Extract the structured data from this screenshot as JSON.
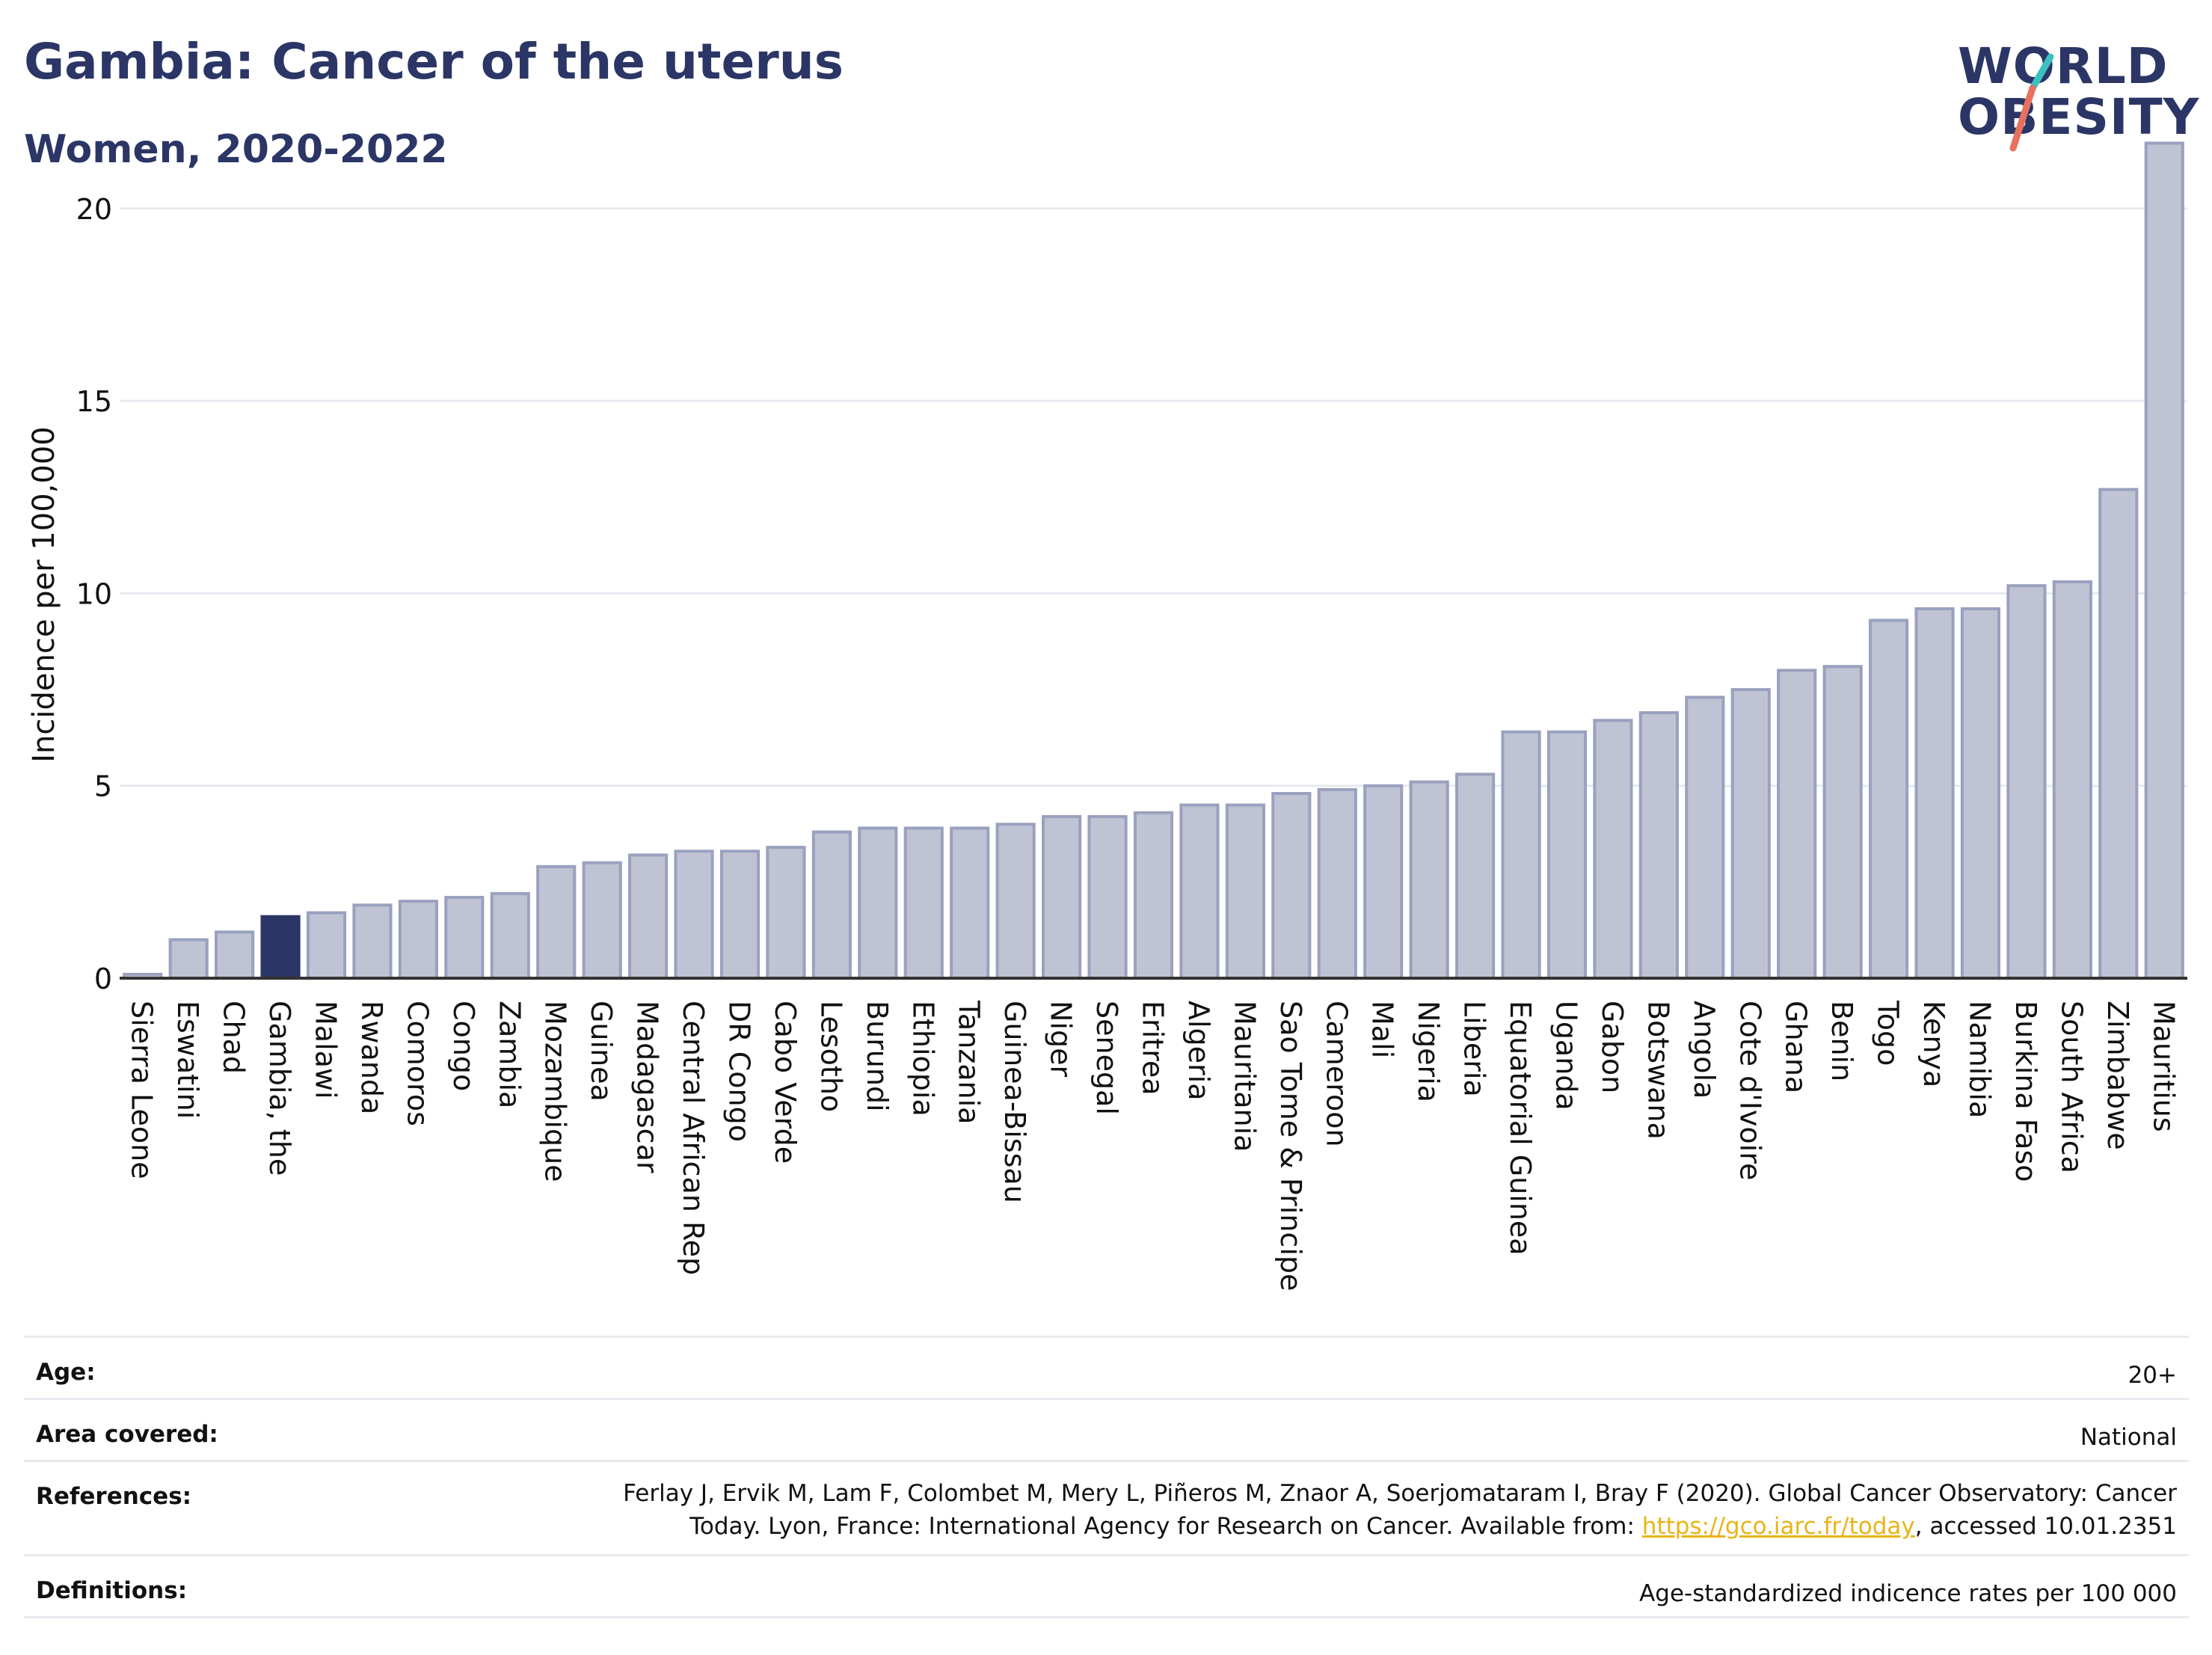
{
  "header": {
    "title": "Gambia: Cancer of the uterus",
    "subtitle": "Women, 2020-2022"
  },
  "logo": {
    "line1": "WORLD",
    "line2": "OBESITY",
    "colors": {
      "text": "#2b3666",
      "accent_teal": "#3cc0c0",
      "accent_red": "#e8705f"
    }
  },
  "colors": {
    "bar": "#bfc3d3",
    "bar_edge": "#9aa1bf",
    "highlight": "#2b3666",
    "grid": "#e6eaef",
    "axis": "#333333",
    "link": "#e8b418"
  },
  "chart_data": {
    "type": "bar",
    "title": "Gambia: Cancer of the uterus",
    "subtitle": "Women, 2020-2022",
    "xlabel": "",
    "ylabel": "Incidence per 100,000",
    "ylim": [
      0,
      22
    ],
    "yticks": [
      0,
      5,
      10,
      15,
      20
    ],
    "grid": true,
    "highlight": "Gambia, the",
    "categories": [
      "Sierra Leone",
      "Eswatini",
      "Chad",
      "Gambia, the",
      "Malawi",
      "Rwanda",
      "Comoros",
      "Congo",
      "Zambia",
      "Mozambique",
      "Guinea",
      "Madagascar",
      "Central African Rep",
      "DR Congo",
      "Cabo Verde",
      "Lesotho",
      "Burundi",
      "Ethiopia",
      "Tanzania",
      "Guinea-Bissau",
      "Niger",
      "Senegal",
      "Eritrea",
      "Algeria",
      "Mauritania",
      "Sao Tome & Principe",
      "Cameroon",
      "Mali",
      "Nigeria",
      "Liberia",
      "Equatorial Guinea",
      "Uganda",
      "Gabon",
      "Botswana",
      "Angola",
      "Cote d'Ivoire",
      "Ghana",
      "Benin",
      "Togo",
      "Kenya",
      "Namibia",
      "Burkina Faso",
      "South Africa",
      "Zimbabwe",
      "Mauritius"
    ],
    "values": [
      0.1,
      1.0,
      1.2,
      1.6,
      1.7,
      1.9,
      2.0,
      2.1,
      2.2,
      2.9,
      3.0,
      3.2,
      3.3,
      3.3,
      3.4,
      3.8,
      3.9,
      3.9,
      3.9,
      4.0,
      4.2,
      4.2,
      4.3,
      4.5,
      4.5,
      4.8,
      4.9,
      5.0,
      5.1,
      5.3,
      6.4,
      6.4,
      6.7,
      6.9,
      7.3,
      7.5,
      8.0,
      8.1,
      9.3,
      9.6,
      9.6,
      10.2,
      10.3,
      12.7,
      21.7
    ]
  },
  "details": {
    "age_label": "Age:",
    "age_value": "20+",
    "area_label": "Area covered:",
    "area_value": "National",
    "references_label": "References:",
    "references_text": "Ferlay J, Ervik M, Lam F, Colombet M, Mery L, Piñeros M, Znaor A, Soerjomataram I, Bray F (2020). Global Cancer Observatory: Cancer Today. Lyon, France: International Agency for Research on Cancer. Available from:",
    "references_link": "https://gco.iarc.fr/today",
    "references_suffix": ", accessed 10.01.2351",
    "definitions_label": "Definitions:",
    "definitions_value": "Age-standardized indicence rates per 100 000"
  }
}
